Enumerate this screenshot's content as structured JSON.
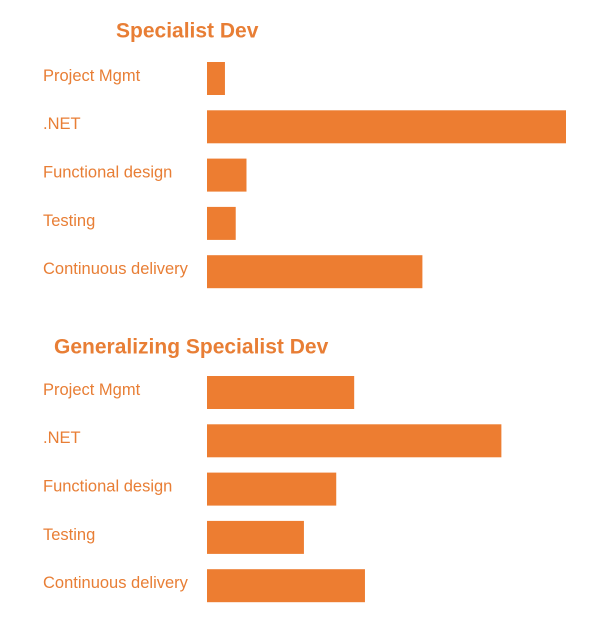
{
  "chart_data": [
    {
      "type": "bar",
      "title": "Specialist Dev",
      "categories": [
        "Project Mgmt",
        ".NET",
        "Functional design",
        "Testing",
        "Continuous delivery"
      ],
      "values": [
        5,
        100,
        11,
        8,
        60
      ],
      "color": "#ed7d31",
      "xlim": [
        0,
        100
      ]
    },
    {
      "type": "bar",
      "title": "Generalizing Specialist Dev",
      "categories": [
        "Project Mgmt",
        ".NET",
        "Functional design",
        "Testing",
        "Continuous delivery"
      ],
      "values": [
        41,
        82,
        36,
        27,
        44
      ],
      "color": "#ed7d31",
      "xlim": [
        0,
        100
      ]
    }
  ]
}
